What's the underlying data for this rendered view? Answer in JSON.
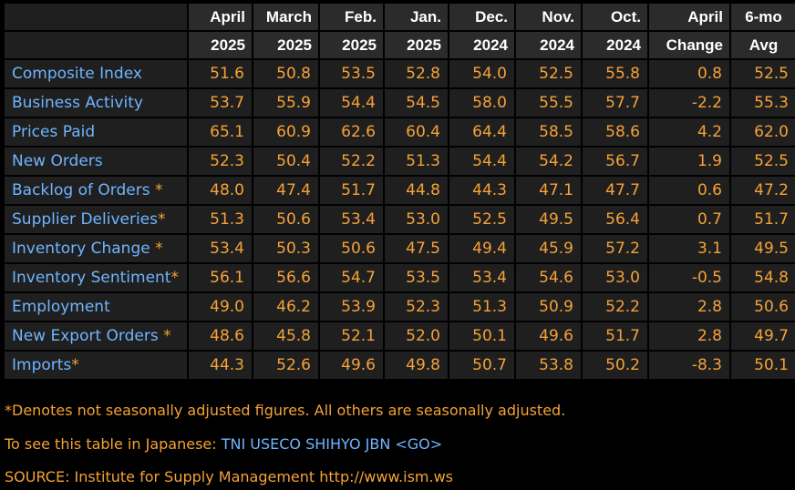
{
  "header": {
    "row1": [
      "",
      "April",
      "March",
      "Feb.",
      "Jan.",
      "Dec.",
      "Nov.",
      "Oct.",
      "April",
      "6-mo"
    ],
    "row2": [
      "",
      "2025",
      "2025",
      "2025",
      "2025",
      "2024",
      "2024",
      "2024",
      "Change",
      "Avg"
    ]
  },
  "rows": [
    {
      "label": "Composite Index",
      "star": "",
      "values": [
        "51.6",
        "50.8",
        "53.5",
        "52.8",
        "54.0",
        "52.5",
        "55.8",
        "0.8",
        "52.5"
      ]
    },
    {
      "label": "Business Activity",
      "star": "",
      "values": [
        "53.7",
        "55.9",
        "54.4",
        "54.5",
        "58.0",
        "55.5",
        "57.7",
        "-2.2",
        "55.3"
      ]
    },
    {
      "label": "Prices Paid",
      "star": "",
      "values": [
        "65.1",
        "60.9",
        "62.6",
        "60.4",
        "64.4",
        "58.5",
        "58.6",
        "4.2",
        "62.0"
      ]
    },
    {
      "label": "New Orders",
      "star": "",
      "values": [
        "52.3",
        "50.4",
        "52.2",
        "51.3",
        "54.4",
        "54.2",
        "56.7",
        "1.9",
        "52.5"
      ]
    },
    {
      "label": "Backlog of Orders ",
      "star": "*",
      "values": [
        "48.0",
        "47.4",
        "51.7",
        "44.8",
        "44.3",
        "47.1",
        "47.7",
        "0.6",
        "47.2"
      ]
    },
    {
      "label": "Supplier Deliveries",
      "star": "*",
      "values": [
        "51.3",
        "50.6",
        "53.4",
        "53.0",
        "52.5",
        "49.5",
        "56.4",
        "0.7",
        "51.7"
      ]
    },
    {
      "label": "Inventory Change ",
      "star": "*",
      "values": [
        "53.4",
        "50.3",
        "50.6",
        "47.5",
        "49.4",
        "45.9",
        "57.2",
        "3.1",
        "49.5"
      ]
    },
    {
      "label": "Inventory Sentiment",
      "star": "*",
      "values": [
        "56.1",
        "56.6",
        "54.7",
        "53.5",
        "53.4",
        "54.6",
        "53.0",
        "-0.5",
        "54.8"
      ]
    },
    {
      "label": "Employment",
      "star": "",
      "values": [
        "49.0",
        "46.2",
        "53.9",
        "52.3",
        "51.3",
        "50.9",
        "52.2",
        "2.8",
        "50.6"
      ]
    },
    {
      "label": "New Export Orders ",
      "star": "*",
      "values": [
        "48.6",
        "45.8",
        "52.1",
        "52.0",
        "50.1",
        "49.6",
        "51.7",
        "2.8",
        "49.7"
      ]
    },
    {
      "label": "Imports",
      "star": "*",
      "values": [
        "44.3",
        "52.6",
        "49.6",
        "49.8",
        "50.7",
        "53.8",
        "50.2",
        "-8.3",
        "50.1"
      ]
    }
  ],
  "footer": {
    "note": "*Denotes not seasonally adjusted figures. All others are seasonally adjusted.",
    "japanese_prefix": "To see this table in Japanese: ",
    "japanese_command": "TNI USECO SHIHYO JBN <GO>",
    "source": "SOURCE: Institute for Supply Management http://www.ism.ws"
  },
  "colors": {
    "background": "#000000",
    "cell": "#1f1f1f",
    "header_cell": "#2b2b2b",
    "value_text": "#f5a236",
    "label_text": "#6fb5ff",
    "header_text": "#ffffff"
  }
}
